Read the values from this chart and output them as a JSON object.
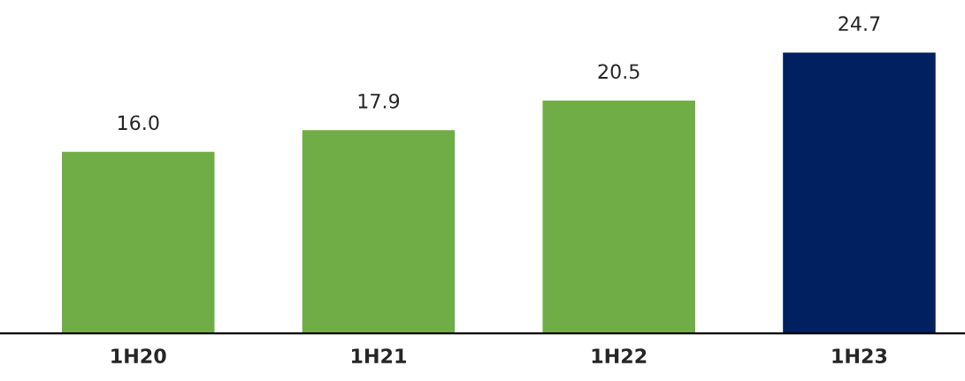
{
  "chart_data": {
    "type": "bar",
    "categories": [
      "1H20",
      "1H21",
      "1H22",
      "1H23"
    ],
    "values": [
      16.0,
      17.9,
      20.5,
      24.7
    ],
    "colors": [
      "#70ad47",
      "#70ad47",
      "#70ad47",
      "#002060"
    ],
    "value_labels": [
      "16.0",
      "17.9",
      "20.5",
      "24.7"
    ],
    "grid": false,
    "legend": false
  }
}
